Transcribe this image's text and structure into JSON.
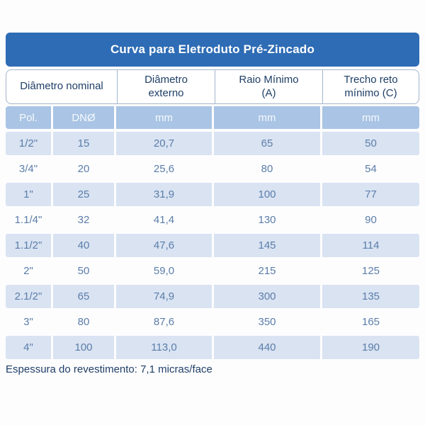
{
  "title": "Curva para Eletroduto Pré-Zincado",
  "colors": {
    "title_bar": "#2e6cb5",
    "units_row": "#a9c4e4",
    "row_alt": "#d9e3f2",
    "data_text": "#5b7da9",
    "heading_text": "#1f3f66"
  },
  "table": {
    "columns": [
      "Diâmetro nominal",
      "Diâmetro externo",
      "Raio Mínimo (A)",
      "Trecho reto mínimo (C)"
    ],
    "units": [
      "Pol.",
      "DNØ",
      "mm",
      "mm",
      "mm"
    ],
    "rows": [
      [
        "1/2\"",
        "15",
        "20,7",
        "65",
        "50"
      ],
      [
        "3/4\"",
        "20",
        "25,6",
        "80",
        "54"
      ],
      [
        "1\"",
        "25",
        "31,9",
        "100",
        "77"
      ],
      [
        "1.1/4\"",
        "32",
        "41,4",
        "130",
        "90"
      ],
      [
        "1.1/2\"",
        "40",
        "47,6",
        "145",
        "114"
      ],
      [
        "2\"",
        "50",
        "59,0",
        "215",
        "125"
      ],
      [
        "2.1/2\"",
        "65",
        "74,9",
        "300",
        "135"
      ],
      [
        "3\"",
        "80",
        "87,6",
        "350",
        "165"
      ],
      [
        "4\"",
        "100",
        "113,0",
        "440",
        "190"
      ]
    ]
  },
  "footer": {
    "note": "Espessura do revestimento: 7,1 micras/face"
  }
}
